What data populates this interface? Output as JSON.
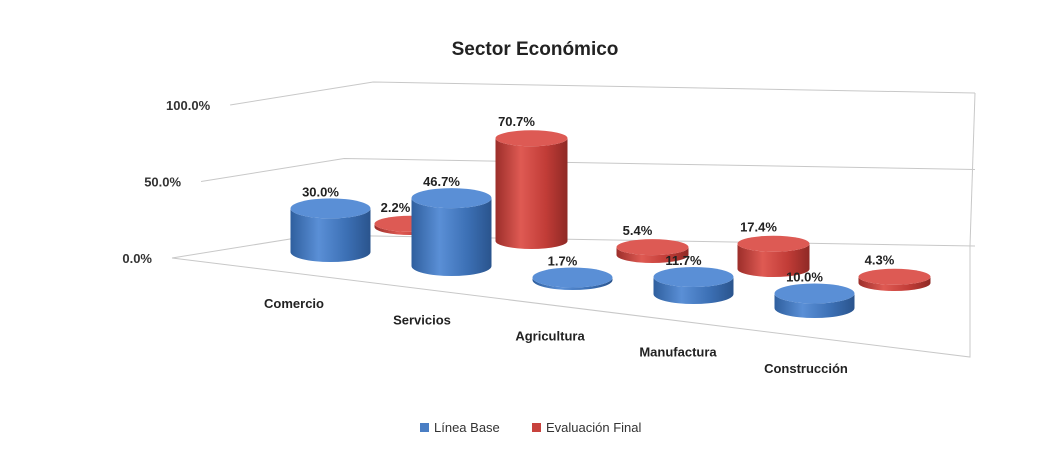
{
  "chart_data": {
    "type": "bar",
    "title": "Sector Económico",
    "categories": [
      "Comercio",
      "Servicios",
      "Agricultura",
      "Manufactura",
      "Construcción"
    ],
    "series": [
      {
        "name": "Línea Base",
        "values": [
          30.0,
          46.7,
          1.7,
          11.7,
          10.0
        ],
        "labels": [
          "30.0%",
          "46.7%",
          "1.7%",
          "11.7%",
          "10.0%"
        ]
      },
      {
        "name": "Evaluación Final",
        "values": [
          2.2,
          70.7,
          5.4,
          17.4,
          4.3
        ],
        "labels": [
          "2.2%",
          "70.7%",
          "5.4%",
          "17.4%",
          "4.3%"
        ]
      }
    ],
    "yticks": [
      "0.0%",
      "50.0%",
      "100.0%"
    ],
    "ylim": [
      0,
      100
    ],
    "grid": true,
    "legend": "bottom",
    "colors": {
      "Línea Base": "#4a7ec4",
      "Evaluación Final": "#c8423d"
    }
  }
}
